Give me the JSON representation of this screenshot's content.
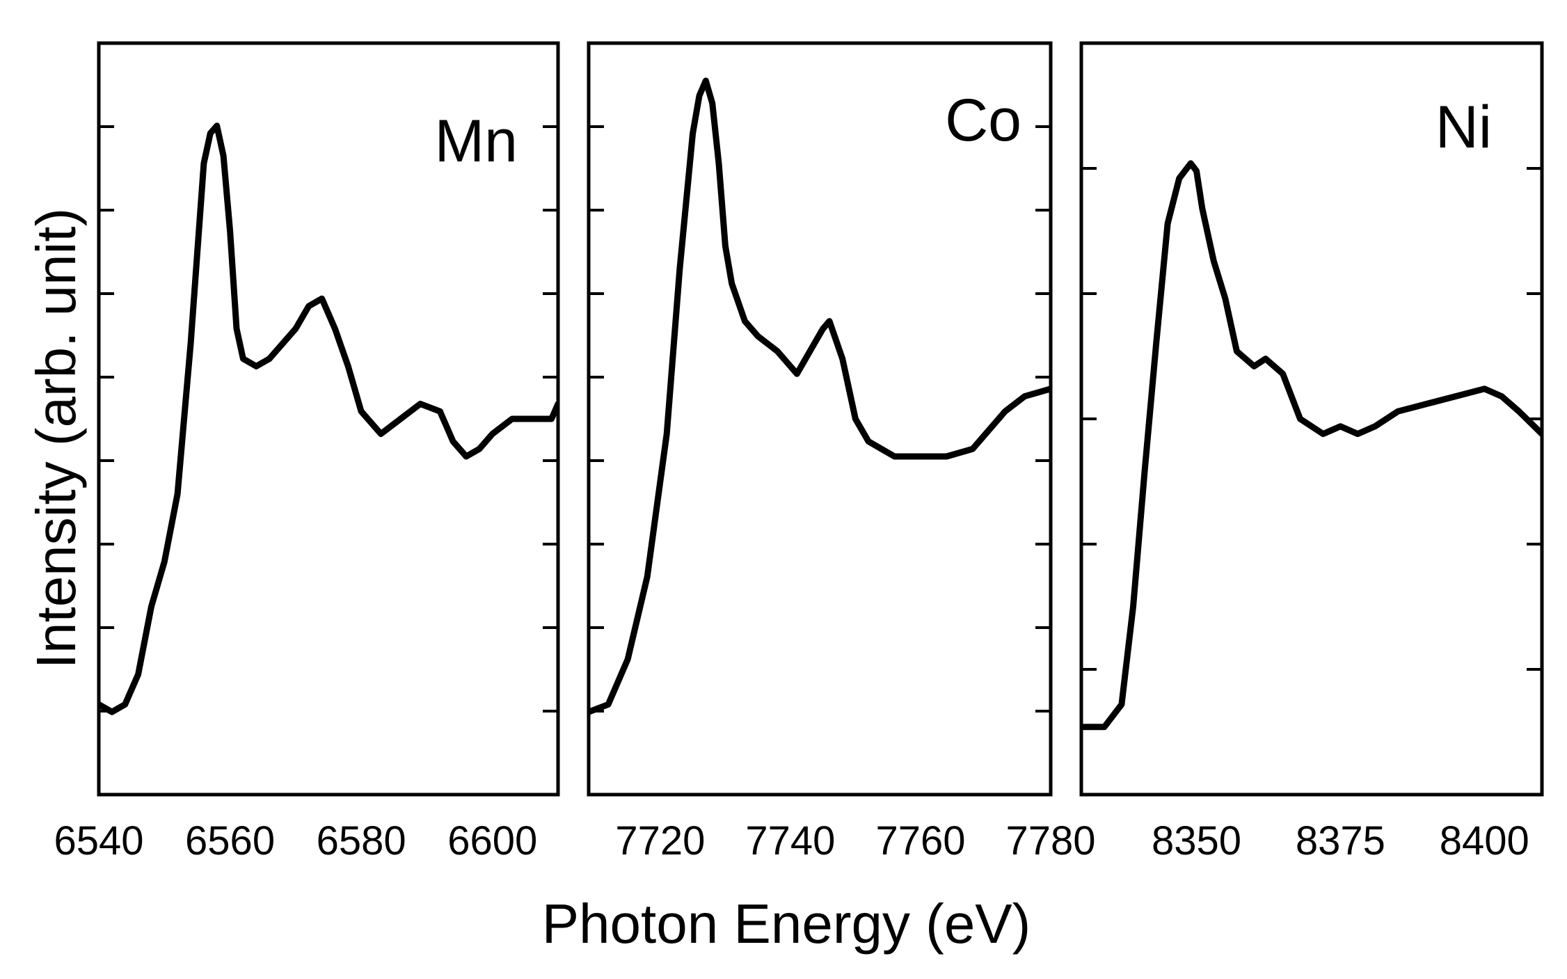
{
  "chart_data": {
    "type": "line",
    "xlabel": "Photon Energy (eV)",
    "ylabel": "Intensity (arb. unit)",
    "panels": [
      {
        "label": "Mn",
        "xlim": [
          6540,
          6610
        ],
        "ylim": [
          0,
          1
        ],
        "xticks": [
          6540,
          6560,
          6580,
          6600
        ],
        "tick_labels": [
          "6540",
          "6560",
          "6580",
          "6600"
        ],
        "series": {
          "x": [
            6540,
            6542,
            6544,
            6546,
            6548,
            6550,
            6552,
            6554,
            6556,
            6557,
            6558,
            6559,
            6560,
            6561,
            6562,
            6564,
            6566,
            6568,
            6570,
            6572,
            6574,
            6576,
            6578,
            6580,
            6583,
            6586,
            6589,
            6592,
            6594,
            6596,
            6598,
            6600,
            6603,
            6606,
            6609,
            6610
          ],
          "y": [
            0.12,
            0.11,
            0.12,
            0.16,
            0.25,
            0.31,
            0.4,
            0.6,
            0.84,
            0.88,
            0.89,
            0.85,
            0.75,
            0.62,
            0.58,
            0.57,
            0.58,
            0.6,
            0.62,
            0.65,
            0.66,
            0.62,
            0.57,
            0.51,
            0.48,
            0.5,
            0.52,
            0.51,
            0.47,
            0.45,
            0.46,
            0.48,
            0.5,
            0.5,
            0.5,
            0.52
          ]
        }
      },
      {
        "label": "Co",
        "xlim": [
          7709,
          7780
        ],
        "ylim": [
          0,
          1
        ],
        "xticks": [
          7720,
          7740,
          7760,
          7780
        ],
        "tick_labels": [
          "7720",
          "7740",
          "7760",
          "7780"
        ],
        "series": {
          "x": [
            7709,
            7712,
            7715,
            7718,
            7721,
            7723,
            7725,
            7726,
            7727,
            7728,
            7729,
            7730,
            7731,
            7733,
            7735,
            7738,
            7741,
            7743,
            7745,
            7746,
            7748,
            7750,
            7752,
            7756,
            7760,
            7764,
            7768,
            7770,
            7773,
            7776,
            7780
          ],
          "y": [
            0.11,
            0.12,
            0.18,
            0.29,
            0.48,
            0.7,
            0.88,
            0.93,
            0.95,
            0.92,
            0.84,
            0.73,
            0.68,
            0.63,
            0.61,
            0.59,
            0.56,
            0.59,
            0.62,
            0.63,
            0.58,
            0.5,
            0.47,
            0.45,
            0.45,
            0.45,
            0.46,
            0.48,
            0.51,
            0.53,
            0.54
          ]
        }
      },
      {
        "label": "Ni",
        "xlim": [
          8330,
          8410
        ],
        "ylim": [
          0,
          1
        ],
        "xticks": [
          8350,
          8375,
          8400
        ],
        "tick_labels": [
          "8350",
          "8375",
          "8400"
        ],
        "series": {
          "x": [
            8330,
            8334,
            8337,
            8339,
            8341,
            8343,
            8345,
            8347,
            8349,
            8350,
            8351,
            8353,
            8355,
            8357,
            8360,
            8362,
            8365,
            8368,
            8372,
            8375,
            8378,
            8381,
            8385,
            8390,
            8395,
            8400,
            8403,
            8406,
            8410
          ],
          "y": [
            0.09,
            0.09,
            0.12,
            0.25,
            0.43,
            0.6,
            0.76,
            0.82,
            0.84,
            0.83,
            0.78,
            0.71,
            0.66,
            0.59,
            0.57,
            0.58,
            0.56,
            0.5,
            0.48,
            0.49,
            0.48,
            0.49,
            0.51,
            0.52,
            0.53,
            0.54,
            0.53,
            0.51,
            0.48
          ]
        }
      }
    ]
  }
}
